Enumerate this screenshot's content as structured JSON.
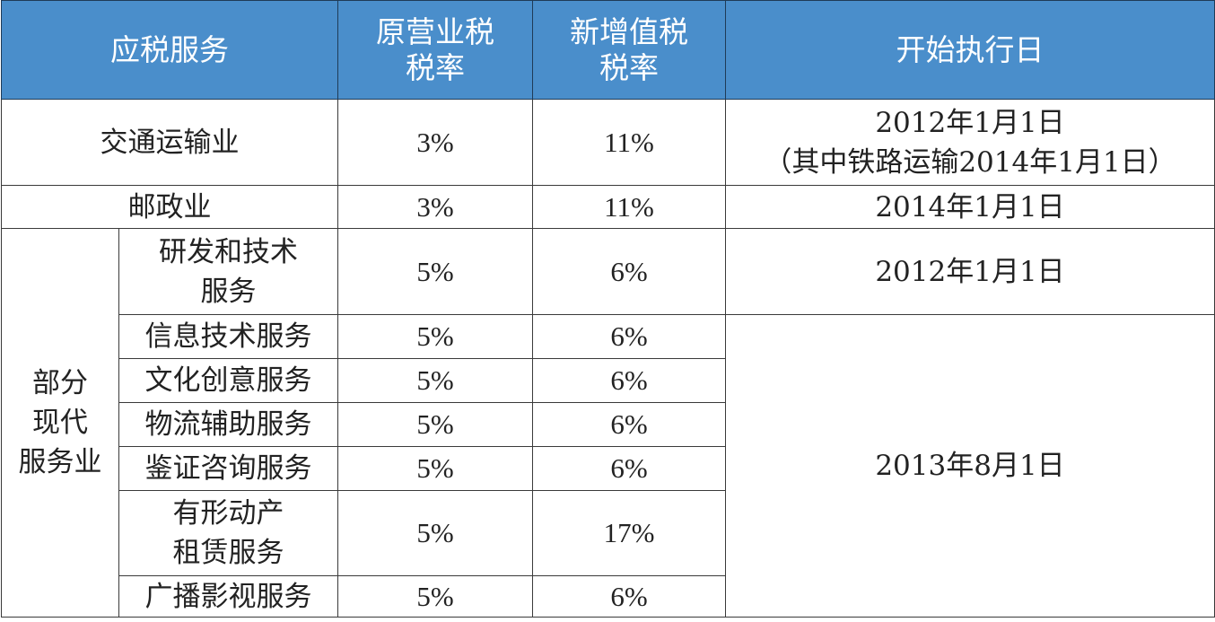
{
  "header": {
    "service": "应税服务",
    "old_rate_l1": "原营业税",
    "old_rate_l2": "税率",
    "new_rate_l1": "新增值税",
    "new_rate_l2": "税率",
    "start_date": "开始执行日"
  },
  "rows": {
    "transport": {
      "name": "交通运输业",
      "old_rate": "3%",
      "new_rate": "11%",
      "date_l1": "2012年1月1日",
      "date_l2": "（其中铁路运输2014年1月1日）"
    },
    "postal": {
      "name": "邮政业",
      "old_rate": "3%",
      "new_rate": "11%",
      "date": "2014年1月1日"
    },
    "modern_services": {
      "category_l1": "部分",
      "category_l2": "现代",
      "category_l3": "服务业",
      "items": [
        {
          "name_l1": "研发和技术",
          "name_l2": "服务",
          "old_rate": "5%",
          "new_rate": "6%",
          "date": "2012年1月1日"
        },
        {
          "name": "信息技术服务",
          "old_rate": "5%",
          "new_rate": "6%"
        },
        {
          "name": "文化创意服务",
          "old_rate": "5%",
          "new_rate": "6%"
        },
        {
          "name": "物流辅助服务",
          "old_rate": "5%",
          "new_rate": "6%"
        },
        {
          "name": "鉴证咨询服务",
          "old_rate": "5%",
          "new_rate": "6%"
        },
        {
          "name_l1": "有形动产",
          "name_l2": "租赁服务",
          "old_rate": "5%",
          "new_rate": "17%"
        },
        {
          "name": "广播影视服务",
          "old_rate": "5%",
          "new_rate": "6%"
        }
      ],
      "group_date": "2013年8月1日"
    }
  }
}
